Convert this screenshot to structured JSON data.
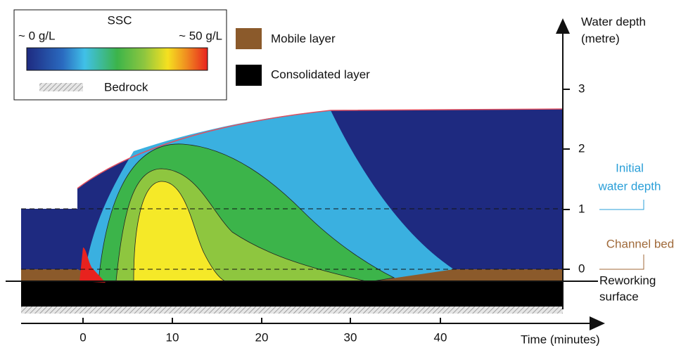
{
  "legend": {
    "title": "SSC",
    "low": "~ 0 g/L",
    "high": "~ 50 g/L",
    "bedrock": "Bedrock",
    "mobile": "Mobile layer",
    "consolidated": "Consolidated layer"
  },
  "depth_axis": {
    "title": [
      "Water depth",
      "(metre)"
    ],
    "ticks": [
      "3",
      "2",
      "1",
      "0"
    ]
  },
  "time_axis": {
    "title": "Time (minutes)",
    "ticks": [
      "0",
      "10",
      "20",
      "30",
      "40"
    ]
  },
  "annotations": {
    "initial": [
      "Initial",
      "water depth"
    ],
    "channel": "Channel bed",
    "reworking": [
      "Reworking",
      "surface"
    ]
  }
}
